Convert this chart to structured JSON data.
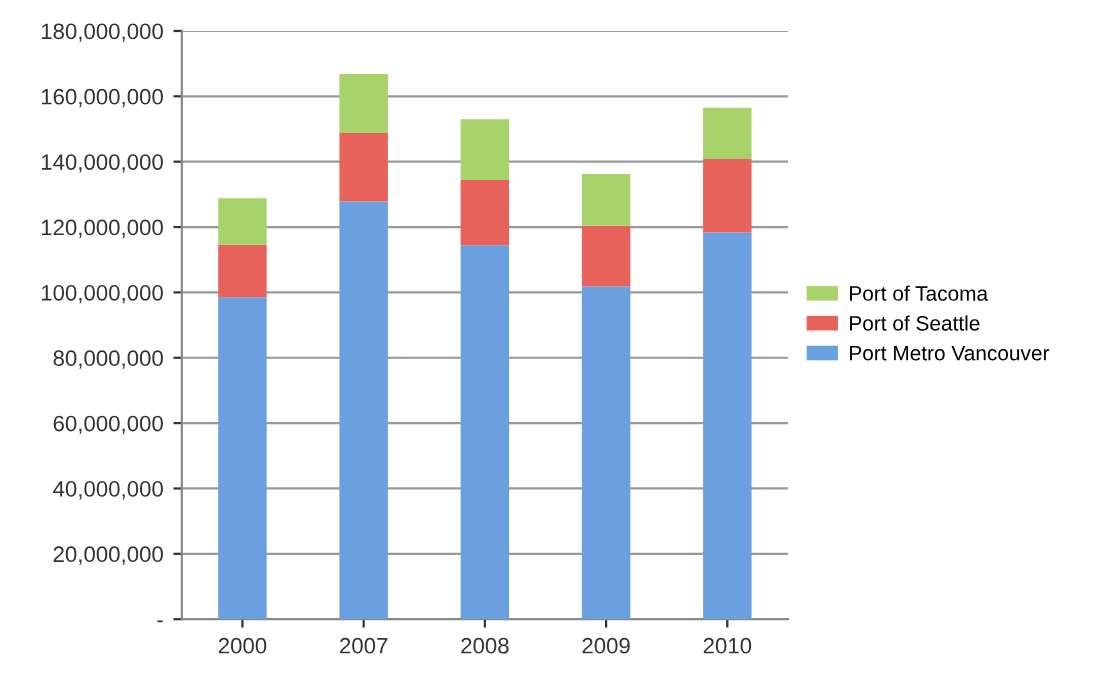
{
  "chart_data": {
    "type": "bar",
    "stacked": true,
    "categories": [
      "2000",
      "2007",
      "2008",
      "2009",
      "2010"
    ],
    "series": [
      {
        "name": "Port Metro Vancouver",
        "color": "#6a9fe0",
        "values": [
          98500000,
          127800000,
          114400000,
          101800000,
          118300000
        ]
      },
      {
        "name": "Port of Seattle",
        "color": "#e8625c",
        "values": [
          16100000,
          21000000,
          20000000,
          18600000,
          22500000
        ]
      },
      {
        "name": "Port of Tacoma",
        "color": "#a8d36a",
        "values": [
          14200000,
          18000000,
          18600000,
          15800000,
          15700000
        ]
      }
    ],
    "ylim": [
      0,
      180000000
    ],
    "yticks": [
      {
        "value": 0,
        "label": "-"
      },
      {
        "value": 20000000,
        "label": "20,000,000"
      },
      {
        "value": 40000000,
        "label": "40,000,000"
      },
      {
        "value": 60000000,
        "label": "60,000,000"
      },
      {
        "value": 80000000,
        "label": "80,000,000"
      },
      {
        "value": 100000000,
        "label": "100,000,000"
      },
      {
        "value": 120000000,
        "label": "120,000,000"
      },
      {
        "value": 140000000,
        "label": "140,000,000"
      },
      {
        "value": 160000000,
        "label": "160,000,000"
      },
      {
        "value": 180000000,
        "label": "180,000,000"
      }
    ],
    "grid": "y",
    "legend": "right"
  }
}
